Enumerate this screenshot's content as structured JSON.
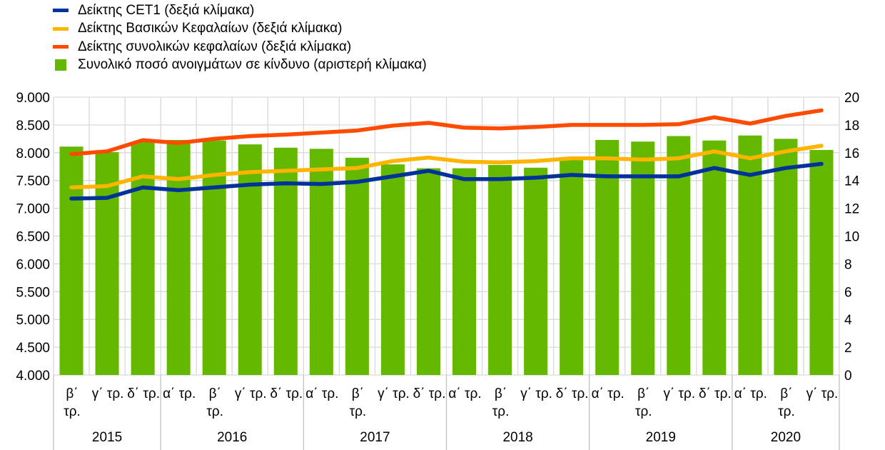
{
  "chart_data": {
    "type": "bar",
    "legend": [
      {
        "key": "cet1",
        "label": "Δείκτης CET1 (δεξιά κλίμακα)",
        "color": "#003299",
        "kind": "line"
      },
      {
        "key": "tier1",
        "label": "Δείκτης Βασικών Κεφαλαίων (δεξιά κλίμακα)",
        "color": "#FFB400",
        "kind": "line"
      },
      {
        "key": "total",
        "label": "Δείκτης συνολικών κεφαλαίων (δεξιά κλίμακα)",
        "color": "#FF4B00",
        "kind": "line"
      },
      {
        "key": "rwa",
        "label": "Συνολικό ποσό ανοιγμάτων σε κίνδυνο (αριστερή κλίμακα)",
        "color": "#65B800",
        "kind": "bar"
      }
    ],
    "categories": [
      [
        "β΄",
        "τρ."
      ],
      [
        "γ΄ τρ."
      ],
      [
        "δ΄ τρ."
      ],
      [
        "α΄ τρ."
      ],
      [
        "β΄",
        "τρ."
      ],
      [
        "γ΄ τρ."
      ],
      [
        "δ΄ τρ."
      ],
      [
        "α΄ τρ."
      ],
      [
        "β΄",
        "τρ."
      ],
      [
        "γ΄ τρ."
      ],
      [
        "δ΄ τρ."
      ],
      [
        "α΄ τρ."
      ],
      [
        "β΄",
        "τρ."
      ],
      [
        "γ΄ τρ."
      ],
      [
        "δ΄ τρ."
      ],
      [
        "α΄ τρ."
      ],
      [
        "β΄",
        "τρ."
      ],
      [
        "γ΄ τρ."
      ],
      [
        "δ΄ τρ."
      ],
      [
        "α΄ τρ."
      ],
      [
        "β΄",
        "τρ."
      ],
      [
        "γ΄ τρ."
      ]
    ],
    "years": [
      {
        "label": "2015",
        "count": 3
      },
      {
        "label": "2016",
        "count": 4
      },
      {
        "label": "2017",
        "count": 4
      },
      {
        "label": "2018",
        "count": 4
      },
      {
        "label": "2019",
        "count": 4
      },
      {
        "label": "2020",
        "count": 3
      }
    ],
    "left_axis": {
      "min": 4000,
      "max": 9000,
      "ticks": [
        "4.000",
        "4.500",
        "5.000",
        "5.500",
        "6.000",
        "6.500",
        "7.000",
        "7.500",
        "8.000",
        "8.500",
        "9.000"
      ]
    },
    "right_axis": {
      "min": 0,
      "max": 20,
      "ticks": [
        "0",
        "2",
        "4",
        "6",
        "8",
        "10",
        "12",
        "14",
        "16",
        "18",
        "20"
      ]
    },
    "bars": [
      8110,
      8010,
      8190,
      8230,
      8220,
      8150,
      8090,
      8070,
      7910,
      7790,
      7720,
      7720,
      7780,
      7730,
      7900,
      8230,
      8200,
      8300,
      8220,
      8310,
      8250,
      8050
    ],
    "series": [
      {
        "name": "Δείκτης CET1 (δεξιά κλίμακα)",
        "values": [
          12.7,
          12.75,
          13.5,
          13.3,
          13.5,
          13.7,
          13.8,
          13.75,
          13.9,
          14.3,
          14.7,
          14.1,
          14.1,
          14.2,
          14.4,
          14.3,
          14.3,
          14.3,
          14.9,
          14.4,
          14.9,
          15.2
        ]
      },
      {
        "name": "Δείκτης Βασικών Κεφαλαίων (δεξιά κλίμακα)",
        "values": [
          13.5,
          13.6,
          14.3,
          14.1,
          14.4,
          14.6,
          14.7,
          14.8,
          14.9,
          15.4,
          15.65,
          15.35,
          15.3,
          15.4,
          15.6,
          15.6,
          15.5,
          15.6,
          16.1,
          15.6,
          16.1,
          16.5
        ]
      },
      {
        "name": "Δείκτης συνολικών κεφαλαίων (δεξιά κλίμακα)",
        "values": [
          15.9,
          16.1,
          16.9,
          16.7,
          17.0,
          17.2,
          17.3,
          17.45,
          17.6,
          17.95,
          18.15,
          17.8,
          17.75,
          17.85,
          18.0,
          18.0,
          18.0,
          18.05,
          18.55,
          18.1,
          18.65,
          19.05
        ]
      }
    ],
    "grid": true
  }
}
